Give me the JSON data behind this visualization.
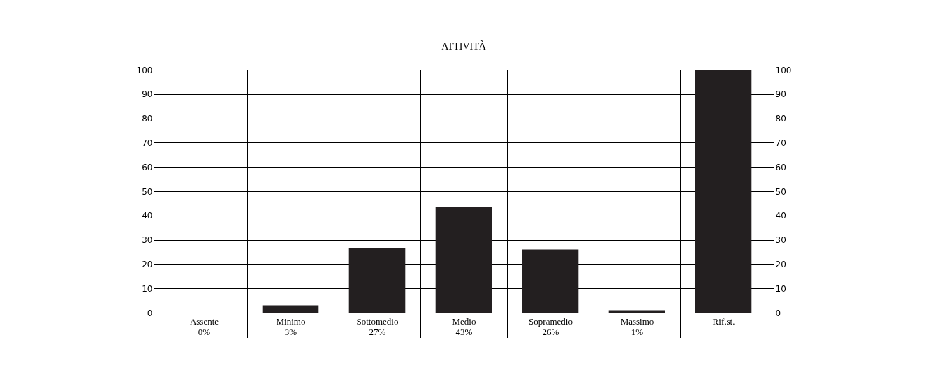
{
  "chart_data": {
    "type": "bar",
    "title": "ATTIVITÀ",
    "categories": [
      "Assente\n0%",
      "Minimo\n3%",
      "Sottomedio\n27%",
      "Medio\n43%",
      "Sopramedio\n26%",
      "Massimo\n1%",
      "Rif.st."
    ],
    "values": [
      0,
      3,
      26.5,
      43.5,
      26,
      1,
      100
    ],
    "color": "#231f20",
    "ylim": [
      0,
      100
    ],
    "yticks": [
      0,
      10,
      20,
      30,
      40,
      50,
      60,
      70,
      80,
      90,
      100
    ],
    "y2lim": [
      0,
      100
    ],
    "y2ticks": [
      0,
      10,
      20,
      30,
      40,
      50,
      60,
      70,
      80,
      90,
      100
    ],
    "grid": true
  }
}
